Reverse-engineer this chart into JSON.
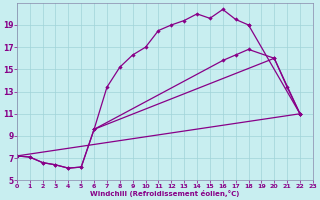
{
  "background_color": "#c8eef0",
  "line_color": "#880088",
  "marker": "D",
  "markersize": 2.2,
  "linewidth": 0.9,
  "xlabel": "Windchill (Refroidissement éolien,°C)",
  "xlim": [
    0,
    23
  ],
  "ylim": [
    5,
    21
  ],
  "yticks": [
    5,
    7,
    9,
    11,
    13,
    15,
    17,
    19
  ],
  "xticks": [
    0,
    1,
    2,
    3,
    4,
    5,
    6,
    7,
    8,
    9,
    10,
    11,
    12,
    13,
    14,
    15,
    16,
    17,
    18,
    19,
    20,
    21,
    22,
    23
  ],
  "curve1_x": [
    0,
    1,
    2,
    3,
    4,
    5,
    6,
    7,
    8,
    9,
    10,
    11,
    12,
    13,
    14,
    15,
    16,
    17,
    18,
    19,
    20,
    21,
    22
  ],
  "curve1_y": [
    7.2,
    7.1,
    6.6,
    6.4,
    6.1,
    6.2,
    9.6,
    13.4,
    15.2,
    16.3,
    17.0,
    18.5,
    19.0,
    19.4,
    20.0,
    19.6,
    20.4,
    19.5,
    19.0,
    null,
    null,
    null,
    11.0
  ],
  "curve2_x": [
    0,
    1,
    2,
    3,
    4,
    5,
    6,
    16,
    17,
    18,
    20,
    21,
    22
  ],
  "curve2_y": [
    7.2,
    7.1,
    6.6,
    6.4,
    6.1,
    6.2,
    9.6,
    15.8,
    16.3,
    16.8,
    16.0,
    13.4,
    11.0
  ],
  "curve3_x": [
    0,
    22
  ],
  "curve3_y": [
    7.2,
    11.0
  ],
  "curve4_x": [
    6,
    20,
    22
  ],
  "curve4_y": [
    9.6,
    16.0,
    11.0
  ]
}
